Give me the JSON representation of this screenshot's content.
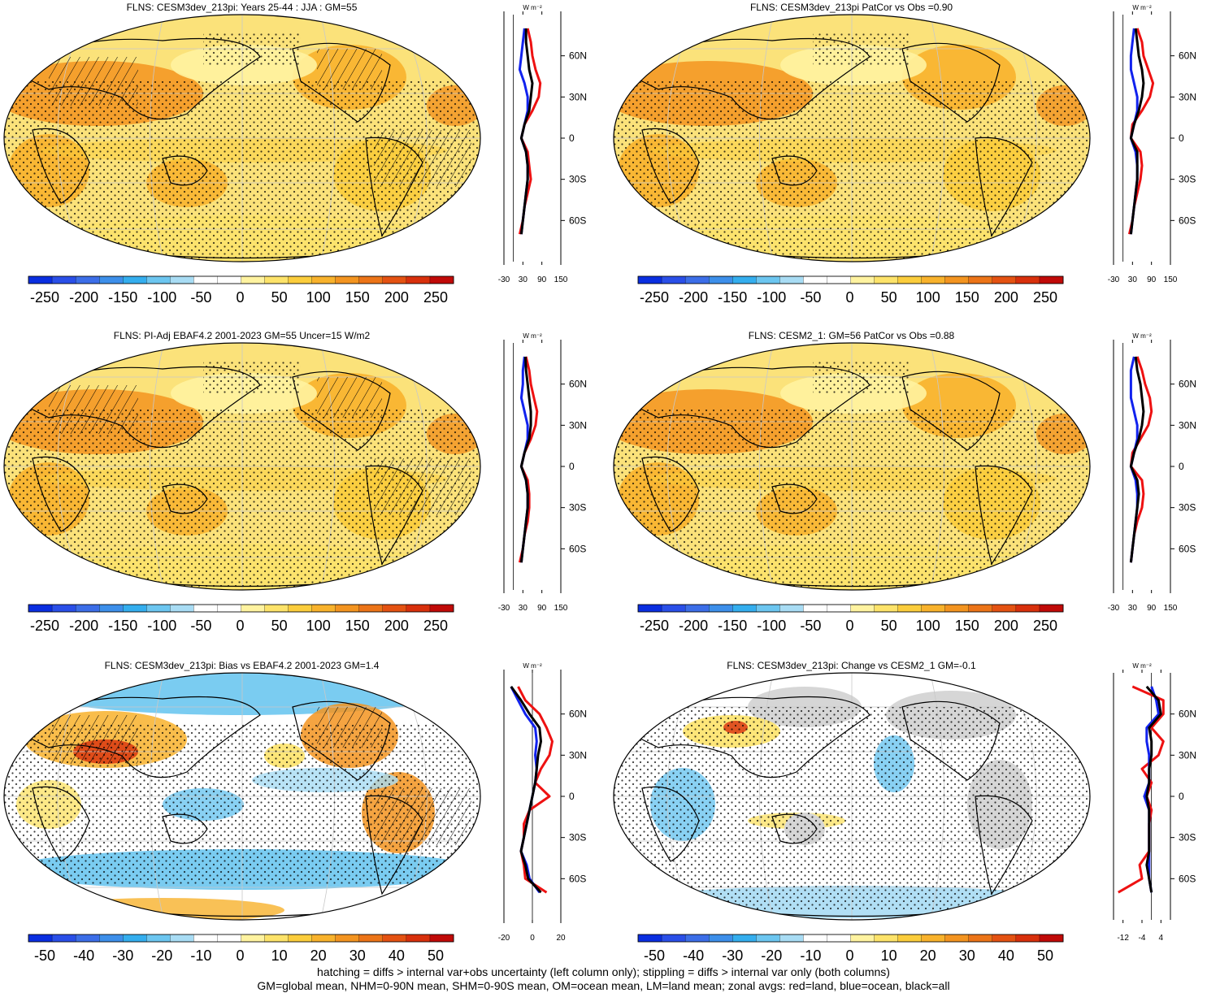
{
  "panels": [
    {
      "title": "FLNS: CESM3dev_213pi: Years 25-44 : JJA : GM=55",
      "style": "abs",
      "hatch": true,
      "cbar_labels": [
        "-250",
        "-200",
        "-150",
        "-100",
        "-50",
        "0",
        "50",
        "100",
        "150",
        "200",
        "250"
      ],
      "zonal_unit": "W m⁻²",
      "zonal_xticks": [
        "-30",
        "30",
        "90",
        "150"
      ],
      "zonal_xlim": [
        -30,
        150
      ],
      "zonal_yticks": [
        "60N",
        "30N",
        "0",
        "30S",
        "60S"
      ]
    },
    {
      "title": "FLNS: CESM3dev_213pi PatCor vs Obs =0.90",
      "style": "abs",
      "hatch": false,
      "cbar_labels": [
        "-250",
        "-200",
        "-150",
        "-100",
        "-50",
        "0",
        "50",
        "100",
        "150",
        "200",
        "250"
      ],
      "zonal_unit": "W m⁻²",
      "zonal_xticks": [
        "-30",
        "30",
        "90",
        "150"
      ],
      "zonal_xlim": [
        -30,
        150
      ],
      "zonal_yticks": [
        "60N",
        "30N",
        "0",
        "30S",
        "60S"
      ]
    },
    {
      "title": "FLNS: PI-Adj EBAF4.2 2001-2023 GM=55 Uncer=15 W/m2",
      "style": "abs",
      "hatch": true,
      "cbar_labels": [
        "-250",
        "-200",
        "-150",
        "-100",
        "-50",
        "0",
        "50",
        "100",
        "150",
        "200",
        "250"
      ],
      "zonal_unit": "W m⁻²",
      "zonal_xticks": [
        "-30",
        "30",
        "90",
        "150"
      ],
      "zonal_xlim": [
        -30,
        150
      ],
      "zonal_yticks": [
        "60N",
        "30N",
        "0",
        "30S",
        "60S"
      ]
    },
    {
      "title": "FLNS: CESM2_1: GM=56 PatCor vs Obs =0.88",
      "style": "abs",
      "hatch": false,
      "cbar_labels": [
        "-250",
        "-200",
        "-150",
        "-100",
        "-50",
        "0",
        "50",
        "100",
        "150",
        "200",
        "250"
      ],
      "zonal_unit": "W m⁻²",
      "zonal_xticks": [
        "-30",
        "30",
        "90",
        "150"
      ],
      "zonal_xlim": [
        -30,
        150
      ],
      "zonal_yticks": [
        "60N",
        "30N",
        "0",
        "30S",
        "60S"
      ]
    },
    {
      "title": "FLNS: CESM3dev_213pi: Bias vs EBAF4.2 2001-2023 GM=1.4",
      "style": "bias",
      "hatch": true,
      "cbar_labels": [
        "-50",
        "-40",
        "-30",
        "-20",
        "-10",
        "0",
        "10",
        "20",
        "30",
        "40",
        "50"
      ],
      "zonal_unit": "W m⁻²",
      "zonal_xticks": [
        "-20",
        "0",
        "20"
      ],
      "zonal_xlim": [
        -20,
        20
      ],
      "zonal_yticks": [
        "60N",
        "30N",
        "0",
        "30S",
        "60S"
      ]
    },
    {
      "title": "FLNS: CESM3dev_213pi: Change vs CESM2_1 GM=-0.1",
      "style": "change",
      "hatch": false,
      "cbar_labels": [
        "-50",
        "-40",
        "-30",
        "-20",
        "-10",
        "0",
        "10",
        "20",
        "30",
        "40",
        "50"
      ],
      "zonal_unit": "W m⁻²",
      "zonal_xticks": [
        "-12",
        "-4",
        "4"
      ],
      "zonal_xlim": [
        -16,
        8
      ],
      "zonal_yticks": [
        "60N",
        "30N",
        "0",
        "30S",
        "60S"
      ]
    }
  ],
  "colors": [
    "#0a2ee0",
    "#2a4fe8",
    "#3c6ee8",
    "#3d8fea",
    "#34aeee",
    "#6cc6f0",
    "#a8dcf4",
    "#ffffff",
    "#ffffff",
    "#fff3a0",
    "#fde36a",
    "#fbcd3c",
    "#f8b22c",
    "#f39420",
    "#ec7418",
    "#e45212",
    "#d8300c",
    "#c00a08"
  ],
  "footer": {
    "line1": "hatching = diffs > internal var+obs uncertainty (left column only); stippling = diffs > internal var only (both columns)",
    "line2": "GM=global mean, NHM=0-90N mean, SHM=0-90S mean, OM=ocean mean, LM=land mean; zonal avgs: red=land, blue=ocean, black=all"
  },
  "chart_data": [
    {
      "type": "line",
      "title": "FLNS: CESM3dev_213pi: Years 25-44 : JJA : GM=55",
      "ylabel": "",
      "xlabel": "W m⁻²",
      "xlim": [
        -30,
        150
      ],
      "y": [
        80,
        70,
        60,
        50,
        40,
        30,
        20,
        10,
        0,
        -10,
        -20,
        -30,
        -40,
        -50,
        -60,
        -70,
        -80
      ],
      "series": [
        {
          "name": "land",
          "values": [
            45,
            55,
            60,
            70,
            85,
            80,
            60,
            35,
            25,
            45,
            50,
            55,
            45,
            35,
            30,
            20,
            null
          ]
        },
        {
          "name": "ocean",
          "values": [
            35,
            30,
            25,
            20,
            35,
            45,
            45,
            35,
            25,
            40,
            45,
            45,
            40,
            35,
            30,
            25,
            null
          ]
        },
        {
          "name": "all",
          "values": [
            40,
            40,
            45,
            50,
            60,
            55,
            50,
            35,
            25,
            40,
            45,
            45,
            40,
            35,
            30,
            25,
            null
          ]
        }
      ]
    },
    {
      "type": "line",
      "title": "FLNS: CESM3dev_213pi PatCor vs Obs =0.90",
      "ylabel": "",
      "xlabel": "W m⁻²",
      "xlim": [
        -30,
        150
      ],
      "y": [
        80,
        70,
        60,
        50,
        40,
        30,
        20,
        10,
        0,
        -10,
        -20,
        -30,
        -40,
        -50,
        -60,
        -70,
        -80
      ],
      "series": [
        {
          "name": "land",
          "values": [
            45,
            60,
            65,
            80,
            95,
            85,
            60,
            30,
            25,
            55,
            60,
            55,
            45,
            35,
            30,
            20,
            null
          ]
        },
        {
          "name": "ocean",
          "values": [
            35,
            30,
            25,
            25,
            35,
            45,
            45,
            35,
            25,
            40,
            45,
            45,
            40,
            35,
            30,
            25,
            null
          ]
        },
        {
          "name": "all",
          "values": [
            40,
            45,
            50,
            60,
            65,
            60,
            50,
            35,
            25,
            45,
            45,
            45,
            40,
            35,
            30,
            25,
            null
          ]
        }
      ]
    },
    {
      "type": "line",
      "title": "FLNS: PI-Adj EBAF4.2 2001-2023 GM=55 Uncer=15 W/m2",
      "ylabel": "",
      "xlabel": "W m⁻²",
      "xlim": [
        -30,
        150
      ],
      "y": [
        80,
        70,
        60,
        50,
        40,
        30,
        20,
        10,
        0,
        -10,
        -20,
        -30,
        -40,
        -50,
        -60,
        -70,
        -80
      ],
      "series": [
        {
          "name": "land",
          "values": [
            40,
            50,
            55,
            65,
            75,
            70,
            55,
            35,
            25,
            45,
            50,
            50,
            45,
            35,
            30,
            20,
            null
          ]
        },
        {
          "name": "ocean",
          "values": [
            35,
            30,
            30,
            25,
            35,
            45,
            45,
            35,
            25,
            40,
            45,
            45,
            40,
            35,
            30,
            25,
            null
          ]
        },
        {
          "name": "all",
          "values": [
            38,
            40,
            45,
            50,
            55,
            55,
            50,
            35,
            25,
            40,
            45,
            45,
            40,
            35,
            30,
            25,
            null
          ]
        }
      ]
    },
    {
      "type": "line",
      "title": "FLNS: CESM2_1: GM=56 PatCor vs Obs =0.88",
      "ylabel": "",
      "xlabel": "W m⁻²",
      "xlim": [
        -30,
        150
      ],
      "y": [
        80,
        70,
        60,
        50,
        40,
        30,
        20,
        10,
        0,
        -10,
        -20,
        -30,
        -40,
        -50,
        -60,
        -70,
        -80
      ],
      "series": [
        {
          "name": "land",
          "values": [
            45,
            60,
            70,
            85,
            90,
            80,
            55,
            30,
            25,
            60,
            65,
            60,
            45,
            35,
            30,
            25,
            null
          ]
        },
        {
          "name": "ocean",
          "values": [
            35,
            25,
            25,
            25,
            35,
            45,
            45,
            35,
            25,
            40,
            45,
            45,
            40,
            35,
            30,
            25,
            null
          ]
        },
        {
          "name": "all",
          "values": [
            40,
            45,
            55,
            60,
            65,
            60,
            50,
            35,
            25,
            45,
            50,
            45,
            40,
            35,
            30,
            25,
            null
          ]
        }
      ]
    },
    {
      "type": "line",
      "title": "FLNS: CESM3dev_213pi: Bias vs EBAF4.2 2001-2023 GM=1.4",
      "ylabel": "",
      "xlabel": "W m⁻²",
      "xlim": [
        -20,
        20
      ],
      "y": [
        80,
        70,
        60,
        50,
        40,
        30,
        20,
        10,
        0,
        -10,
        -20,
        -30,
        -40,
        -50,
        -60,
        -70,
        -80
      ],
      "series": [
        {
          "name": "land",
          "values": [
            -10,
            -5,
            5,
            10,
            14,
            12,
            6,
            2,
            12,
            -2,
            -6,
            -6,
            -8,
            -6,
            -5,
            10,
            null
          ]
        },
        {
          "name": "ocean",
          "values": [
            -15,
            -10,
            -5,
            2,
            3,
            2,
            3,
            2,
            0,
            -2,
            -4,
            -6,
            -8,
            -4,
            -2,
            5,
            null
          ]
        },
        {
          "name": "all",
          "values": [
            -15,
            -8,
            -2,
            5,
            6,
            4,
            3,
            2,
            0,
            -2,
            -4,
            -6,
            -8,
            -5,
            -3,
            6,
            null
          ]
        }
      ]
    },
    {
      "type": "line",
      "title": "FLNS: CESM3dev_213pi: Change vs CESM2_1 GM=-0.1",
      "ylabel": "",
      "xlabel": "W m⁻²",
      "xlim": [
        -16,
        8
      ],
      "y": [
        80,
        70,
        60,
        50,
        40,
        30,
        20,
        10,
        0,
        -10,
        -20,
        -30,
        -40,
        -50,
        -60,
        -70,
        -80
      ],
      "series": [
        {
          "name": "land",
          "values": [
            -8,
            5,
            5,
            0,
            5,
            3,
            -4,
            0,
            -2,
            0,
            -1,
            -1,
            -1,
            -5,
            -4,
            -14,
            null
          ]
        },
        {
          "name": "ocean",
          "values": [
            0,
            2,
            3,
            -2,
            -2,
            -1,
            -1,
            -1,
            -3,
            -1,
            -1,
            -1,
            -1,
            -1,
            -1,
            0,
            null
          ]
        },
        {
          "name": "all",
          "values": [
            -2,
            3,
            4,
            -1,
            0,
            0,
            -1,
            -1,
            -2,
            -1,
            -1,
            -1,
            -1,
            -2,
            -1,
            0,
            null
          ]
        }
      ]
    }
  ]
}
